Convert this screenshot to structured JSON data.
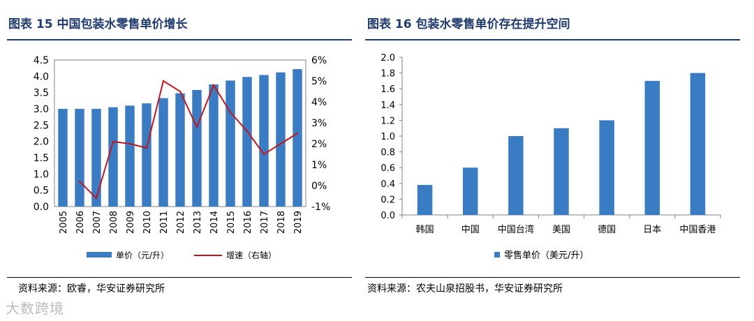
{
  "left_figure": {
    "title": "图表 15 中国包装水零售单价增长",
    "source": "资料来源：欧睿，华安证券研究所"
  },
  "right_figure": {
    "title": "图表 16 包装水零售单价存在提升空间",
    "source": "资料来源：农夫山泉招股书，华安证券研究所"
  },
  "watermark": "大数跨境",
  "chart_data": [
    {
      "type": "bar",
      "categories": [
        "2005",
        "2006",
        "2007",
        "2008",
        "2009",
        "2010",
        "2011",
        "2012",
        "2013",
        "2014",
        "2015",
        "2016",
        "2017",
        "2018",
        "2019"
      ],
      "series": [
        {
          "name": "单价（元/升）",
          "type": "bar",
          "axis": "left",
          "color": "#3a7cc4",
          "values": [
            3.0,
            3.0,
            3.0,
            3.05,
            3.1,
            3.17,
            3.33,
            3.48,
            3.58,
            3.75,
            3.87,
            3.98,
            4.04,
            4.12,
            4.22
          ]
        },
        {
          "name": "增速（右轴）",
          "type": "line",
          "axis": "right",
          "color": "#c0171e",
          "values": [
            null,
            0.2,
            -0.6,
            2.1,
            2.0,
            1.8,
            5.0,
            4.5,
            2.8,
            4.8,
            3.5,
            2.6,
            1.5,
            2.0,
            2.5
          ]
        }
      ],
      "left_axis": {
        "min": 0,
        "max": 4.5,
        "ticks": [
          "0.0",
          "0.5",
          "1.0",
          "1.5",
          "2.0",
          "2.5",
          "3.0",
          "3.5",
          "4.0",
          "4.5"
        ]
      },
      "right_axis": {
        "min": -1,
        "max": 6,
        "ticks": [
          "-1%",
          "0%",
          "1%",
          "2%",
          "3%",
          "4%",
          "5%",
          "6%"
        ]
      },
      "legend": [
        "单价（元/升）",
        "增速（右轴）"
      ],
      "legend_position": "bottom"
    },
    {
      "type": "bar",
      "categories": [
        "韩国",
        "中国",
        "中国台湾",
        "美国",
        "德国",
        "日本",
        "中国香港"
      ],
      "series": [
        {
          "name": "零售单价（美元/升）",
          "color": "#3a7cc4",
          "values": [
            0.38,
            0.6,
            1.0,
            1.1,
            1.2,
            1.7,
            1.8
          ]
        }
      ],
      "y_axis": {
        "min": 0,
        "max": 2.0,
        "ticks": [
          "0.0",
          "0.2",
          "0.4",
          "0.6",
          "0.8",
          "1.0",
          "1.2",
          "1.4",
          "1.6",
          "1.8",
          "2.0"
        ]
      },
      "legend": [
        "零售单价（美元/升）"
      ],
      "legend_position": "bottom"
    }
  ]
}
